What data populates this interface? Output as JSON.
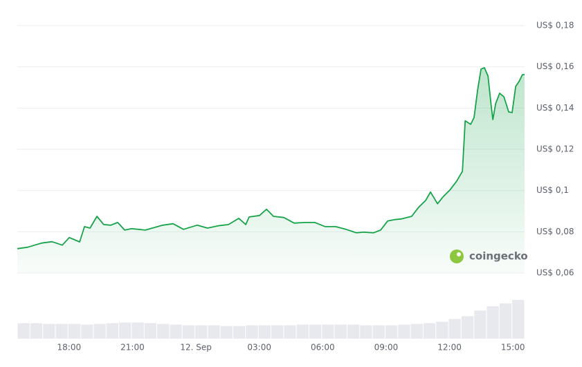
{
  "chart_data": {
    "type": "line",
    "color": "#16a34a",
    "watermark": "coingecko",
    "xlim": [
      15.55,
      39.55
    ],
    "xticks": [
      {
        "value": 18,
        "label": "18:00"
      },
      {
        "value": 21,
        "label": "21:00"
      },
      {
        "value": 24,
        "label": "12. Sep"
      },
      {
        "value": 27,
        "label": "03:00"
      },
      {
        "value": 30,
        "label": "06:00"
      },
      {
        "value": 33,
        "label": "09:00"
      },
      {
        "value": 36,
        "label": "12:00"
      },
      {
        "value": 39,
        "label": "15:00"
      }
    ],
    "ylim": [
      0.06,
      0.18
    ],
    "yticks": [
      {
        "value": 0.06,
        "label": "US$ 0,06"
      },
      {
        "value": 0.08,
        "label": "US$ 0,08"
      },
      {
        "value": 0.1,
        "label": "US$ 0,1"
      },
      {
        "value": 0.12,
        "label": "US$ 0,12"
      },
      {
        "value": 0.14,
        "label": "US$ 0,14"
      },
      {
        "value": 0.16,
        "label": "US$ 0,16"
      },
      {
        "value": 0.18,
        "label": "US$ 0,18"
      }
    ],
    "grid": true,
    "x": [
      15.55,
      16.04,
      16.37,
      16.7,
      17.19,
      17.68,
      18.01,
      18.5,
      18.73,
      18.99,
      19.32,
      19.64,
      19.97,
      20.3,
      20.63,
      20.95,
      21.28,
      21.61,
      21.94,
      22.43,
      22.92,
      23.41,
      24.06,
      24.55,
      25.05,
      25.54,
      26.03,
      26.36,
      26.52,
      27.01,
      27.34,
      27.67,
      28.16,
      28.65,
      29.14,
      29.63,
      30.12,
      30.61,
      31.1,
      31.59,
      31.92,
      32.41,
      32.74,
      33.07,
      33.4,
      33.72,
      34.21,
      34.54,
      34.87,
      35.1,
      35.43,
      35.69,
      36.02,
      36.34,
      36.61,
      36.74,
      37.0,
      37.16,
      37.33,
      37.49,
      37.65,
      37.82,
      37.98,
      38.05,
      38.18,
      38.37,
      38.57,
      38.8,
      38.96,
      39.13,
      39.29,
      39.45,
      39.55
    ],
    "values": [
      0.0718,
      0.0725,
      0.0735,
      0.0745,
      0.0752,
      0.0735,
      0.0772,
      0.0751,
      0.0825,
      0.0818,
      0.0875,
      0.0835,
      0.0832,
      0.0845,
      0.0808,
      0.0815,
      0.0812,
      0.0808,
      0.0818,
      0.0832,
      0.0839,
      0.0812,
      0.0832,
      0.0818,
      0.0829,
      0.0835,
      0.0865,
      0.0835,
      0.0872,
      0.0879,
      0.0909,
      0.0875,
      0.0869,
      0.0842,
      0.0845,
      0.0845,
      0.0825,
      0.0825,
      0.0812,
      0.0795,
      0.0798,
      0.0795,
      0.0808,
      0.0852,
      0.0859,
      0.0862,
      0.0875,
      0.0919,
      0.0952,
      0.0993,
      0.0936,
      0.0969,
      0.1003,
      0.1046,
      0.1093,
      0.1338,
      0.1321,
      0.1354,
      0.1488,
      0.1589,
      0.1596,
      0.1555,
      0.1405,
      0.1344,
      0.1421,
      0.1472,
      0.1455,
      0.1381,
      0.1378,
      0.1505,
      0.1529,
      0.1562,
      0.1562
    ],
    "volume": {
      "color": "#e8e9ee",
      "values": [
        22,
        22,
        21,
        21,
        21,
        20,
        21,
        22,
        23,
        23,
        22,
        21,
        20,
        19,
        19,
        19,
        18,
        18,
        19,
        19,
        19,
        19,
        20,
        20,
        20,
        20,
        20,
        19,
        19,
        19,
        20,
        21,
        22,
        24,
        28,
        32,
        40,
        46,
        50,
        55
      ]
    }
  }
}
